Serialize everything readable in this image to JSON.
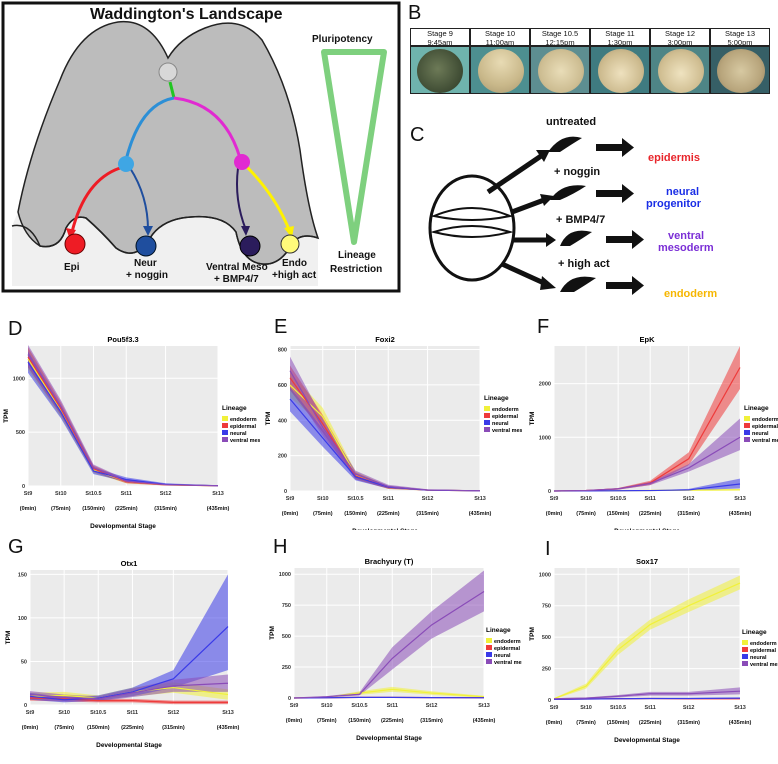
{
  "panels": {
    "A": "A",
    "B": "B",
    "C": "C",
    "D": "D",
    "E": "E",
    "F": "F",
    "G": "G",
    "H": "H",
    "I": "I"
  },
  "landscape": {
    "title": "Waddington's Landscape",
    "pluripotency": "Pluripotency",
    "lineage_restriction_1": "Lineage",
    "lineage_restriction_2": "Restriction",
    "fates": {
      "epi": "Epi",
      "neur_1": "Neur",
      "neur_2": "+ noggin",
      "ventral_1": "Ventral Meso",
      "ventral_2": "+ BMP4/7",
      "endo_1": "Endo",
      "endo_2": "+high act"
    },
    "colors": {
      "epi": "#ee1c25",
      "neur": "#1f4e9e",
      "ventral": "#2b1c5c",
      "endo": "#fff200",
      "node_blue": "#3fa6e4",
      "node_magenta": "#e12ad1",
      "node_top": "#d8d8d8",
      "arrow_green": "#22c522"
    }
  },
  "stages": [
    {
      "name": "Stage 9",
      "time": "9:45am"
    },
    {
      "name": "Stage 10",
      "time": "11:00am"
    },
    {
      "name": "Stage 10.5",
      "time": "12:15pm"
    },
    {
      "name": "Stage 11",
      "time": "1:30pm"
    },
    {
      "name": "Stage 12",
      "time": "3:00pm"
    },
    {
      "name": "Stage 13",
      "time": "5:00pm"
    }
  ],
  "treatments": [
    {
      "treatment": "untreated",
      "outcome_1": "epidermis",
      "outcome_2": "",
      "color": "#e8252b"
    },
    {
      "treatment": "+ noggin",
      "outcome_1": "neural",
      "outcome_2": "progenitor",
      "color": "#1a2ee6"
    },
    {
      "treatment": "+ BMP4/7",
      "outcome_1": "ventral",
      "outcome_2": "mesoderm",
      "color": "#7b2fd6"
    },
    {
      "treatment": "+ high act",
      "outcome_1": "endoderm",
      "outcome_2": "",
      "color": "#f6b600"
    }
  ],
  "lineage_colors": {
    "endoderm": "#f1f13a",
    "epidermal": "#ee3b3b",
    "neural": "#3a3ae8",
    "ventral meso": "#8a4cb8"
  },
  "chart_data": [
    {
      "panel": "D",
      "type": "line",
      "title": "Pou5f3.3",
      "categories": [
        "St9",
        "St10",
        "St10.5",
        "St11",
        "St12",
        "St13"
      ],
      "times": [
        "(0min)",
        "(75min)",
        "(150min)",
        "(225min)",
        "(315min)",
        "(435min)"
      ],
      "x": [
        0,
        75,
        150,
        225,
        315,
        435
      ],
      "xlabel": "Developmental Stage",
      "ylabel": "TPM",
      "yticks": [
        0,
        500,
        1000
      ],
      "ylim": [
        0,
        1300
      ],
      "legend_title": "Lineage",
      "legend": [
        "endoderm",
        "epidermal",
        "neural",
        "ventral meso"
      ],
      "series": [
        {
          "name": "endoderm",
          "values": [
            1180,
            700,
            150,
            40,
            10,
            2
          ],
          "lower": [
            1080,
            640,
            120,
            25,
            5,
            0
          ],
          "upper": [
            1280,
            760,
            180,
            55,
            18,
            5
          ]
        },
        {
          "name": "epidermal",
          "values": [
            1200,
            720,
            160,
            40,
            10,
            2
          ],
          "lower": [
            1100,
            660,
            130,
            25,
            5,
            0
          ],
          "upper": [
            1290,
            780,
            190,
            55,
            18,
            5
          ]
        },
        {
          "name": "neural",
          "values": [
            1150,
            690,
            140,
            60,
            15,
            3
          ],
          "lower": [
            1050,
            630,
            110,
            40,
            8,
            0
          ],
          "upper": [
            1250,
            750,
            170,
            80,
            25,
            6
          ]
        },
        {
          "name": "ventral meso",
          "values": [
            1220,
            740,
            170,
            45,
            12,
            2
          ],
          "lower": [
            1120,
            680,
            140,
            30,
            6,
            0
          ],
          "upper": [
            1310,
            800,
            200,
            60,
            20,
            5
          ]
        }
      ]
    },
    {
      "panel": "E",
      "type": "line",
      "title": "Foxi2",
      "categories": [
        "St9",
        "St10",
        "St10.5",
        "St11",
        "St12",
        "St13"
      ],
      "times": [
        "(0min)",
        "(75min)",
        "(150min)",
        "(225min)",
        "(315min)",
        "(435min)"
      ],
      "x": [
        0,
        75,
        150,
        225,
        315,
        435
      ],
      "xlabel": "Developmental Stage",
      "ylabel": "TPM",
      "yticks": [
        0,
        200,
        400,
        600,
        800
      ],
      "ylim": [
        0,
        820
      ],
      "legend_title": "Lineage",
      "legend": [
        "endoderm",
        "epidermal",
        "neural",
        "ventral meso"
      ],
      "series": [
        {
          "name": "endoderm",
          "values": [
            600,
            420,
            90,
            20,
            5,
            1
          ],
          "lower": [
            530,
            370,
            70,
            12,
            2,
            0
          ],
          "upper": [
            670,
            470,
            110,
            28,
            8,
            3
          ]
        },
        {
          "name": "epidermal",
          "values": [
            640,
            380,
            85,
            20,
            5,
            1
          ],
          "lower": [
            570,
            330,
            65,
            12,
            2,
            0
          ],
          "upper": [
            710,
            430,
            105,
            28,
            8,
            3
          ]
        },
        {
          "name": "neural",
          "values": [
            520,
            300,
            80,
            22,
            5,
            1
          ],
          "lower": [
            450,
            250,
            60,
            14,
            2,
            0
          ],
          "upper": [
            590,
            350,
            100,
            30,
            8,
            3
          ]
        },
        {
          "name": "ventral meso",
          "values": [
            680,
            360,
            95,
            25,
            6,
            1
          ],
          "lower": [
            600,
            310,
            75,
            15,
            2,
            0
          ],
          "upper": [
            760,
            410,
            115,
            35,
            10,
            3
          ]
        }
      ]
    },
    {
      "panel": "F",
      "type": "line",
      "title": "EpK",
      "categories": [
        "St9",
        "St10",
        "St10.5",
        "St11",
        "St12",
        "St13"
      ],
      "times": [
        "(0min)",
        "(75min)",
        "(150min)",
        "(225min)",
        "(315min)",
        "(435min)"
      ],
      "x": [
        0,
        75,
        150,
        225,
        315,
        435
      ],
      "xlabel": "Developmental Stage",
      "ylabel": "TPM",
      "yticks": [
        0,
        1000,
        2000
      ],
      "ylim": [
        0,
        2700
      ],
      "legend_title": "Lineage",
      "legend": [
        "endoderm",
        "epidermal",
        "neural",
        "ventral meso"
      ],
      "series": [
        {
          "name": "endoderm",
          "values": [
            0,
            2,
            5,
            10,
            15,
            20
          ],
          "lower": [
            0,
            0,
            0,
            0,
            5,
            10
          ],
          "upper": [
            0,
            5,
            10,
            20,
            30,
            40
          ]
        },
        {
          "name": "epidermal",
          "values": [
            0,
            10,
            40,
            150,
            600,
            2300
          ],
          "lower": [
            0,
            5,
            25,
            110,
            480,
            1900
          ],
          "upper": [
            0,
            15,
            55,
            190,
            720,
            2700
          ]
        },
        {
          "name": "neural",
          "values": [
            0,
            2,
            5,
            8,
            20,
            130
          ],
          "lower": [
            0,
            0,
            0,
            3,
            10,
            50
          ],
          "upper": [
            0,
            5,
            10,
            15,
            40,
            230
          ]
        },
        {
          "name": "ventral meso",
          "values": [
            0,
            10,
            40,
            140,
            430,
            1000
          ],
          "lower": [
            0,
            5,
            25,
            110,
            360,
            760
          ],
          "upper": [
            0,
            15,
            55,
            170,
            500,
            1350
          ]
        }
      ]
    },
    {
      "panel": "G",
      "type": "line",
      "title": "Otx1",
      "categories": [
        "St9",
        "St10",
        "St10.5",
        "St11",
        "St12",
        "St13"
      ],
      "times": [
        "(0min)",
        "(75min)",
        "(150min)",
        "(225min)",
        "(315min)",
        "(435min)"
      ],
      "x": [
        0,
        75,
        150,
        225,
        315,
        435
      ],
      "xlabel": "Developmental Stage",
      "ylabel": "TPM",
      "yticks": [
        0,
        50,
        100,
        150
      ],
      "ylim": [
        0,
        155
      ],
      "legend_title": "",
      "legend": [],
      "series": [
        {
          "name": "endoderm",
          "values": [
            10,
            11,
            8,
            15,
            20,
            12
          ],
          "lower": [
            6,
            7,
            5,
            10,
            14,
            6
          ],
          "upper": [
            14,
            15,
            11,
            20,
            26,
            18
          ]
        },
        {
          "name": "epidermal",
          "values": [
            8,
            7,
            5,
            5,
            3,
            3
          ],
          "lower": [
            5,
            4,
            3,
            3,
            1,
            1
          ],
          "upper": [
            11,
            10,
            7,
            7,
            5,
            5
          ]
        },
        {
          "name": "neural",
          "values": [
            10,
            6,
            8,
            15,
            30,
            90
          ],
          "lower": [
            6,
            3,
            5,
            10,
            20,
            40
          ],
          "upper": [
            14,
            9,
            11,
            20,
            40,
            150
          ]
        },
        {
          "name": "ventral meso",
          "values": [
            12,
            9,
            7,
            14,
            22,
            25
          ],
          "lower": [
            8,
            6,
            4,
            9,
            15,
            15
          ],
          "upper": [
            16,
            12,
            10,
            19,
            29,
            35
          ]
        }
      ]
    },
    {
      "panel": "H",
      "type": "line",
      "title": "Brachyury (T)",
      "categories": [
        "St9",
        "St10",
        "St10.5",
        "St11",
        "St12",
        "St13"
      ],
      "times": [
        "(0min)",
        "(75min)",
        "(150min)",
        "(225min)",
        "(315min)",
        "(435min)"
      ],
      "x": [
        0,
        75,
        150,
        225,
        315,
        435
      ],
      "xlabel": "Developmental Stage",
      "ylabel": "TPM",
      "yticks": [
        0,
        250,
        500,
        750,
        1000
      ],
      "ylim": [
        0,
        1050
      ],
      "legend_title": "Lineage",
      "legend": [
        "endoderm",
        "epidermal",
        "neural",
        "ventral meso"
      ],
      "series": [
        {
          "name": "endoderm",
          "values": [
            0,
            5,
            40,
            70,
            40,
            10
          ],
          "lower": [
            0,
            2,
            25,
            50,
            25,
            2
          ],
          "upper": [
            0,
            8,
            55,
            90,
            55,
            18
          ]
        },
        {
          "name": "epidermal",
          "values": [
            0,
            2,
            5,
            5,
            3,
            2
          ],
          "lower": [
            0,
            0,
            2,
            2,
            0,
            0
          ],
          "upper": [
            0,
            4,
            8,
            8,
            6,
            4
          ]
        },
        {
          "name": "neural",
          "values": [
            0,
            2,
            5,
            5,
            3,
            2
          ],
          "lower": [
            0,
            0,
            2,
            2,
            0,
            0
          ],
          "upper": [
            0,
            4,
            8,
            8,
            6,
            4
          ]
        },
        {
          "name": "ventral meso",
          "values": [
            0,
            10,
            30,
            320,
            590,
            860
          ],
          "lower": [
            0,
            5,
            20,
            230,
            480,
            700
          ],
          "upper": [
            0,
            15,
            45,
            410,
            700,
            1030
          ]
        }
      ]
    },
    {
      "panel": "I",
      "type": "line",
      "title": "Sox17",
      "categories": [
        "St9",
        "St10",
        "St10.5",
        "St11",
        "St12",
        "St13"
      ],
      "times": [
        "(0min)",
        "(75min)",
        "(150min)",
        "(225min)",
        "(315min)",
        "(435min)"
      ],
      "x": [
        0,
        75,
        150,
        225,
        315,
        435
      ],
      "xlabel": "Developmental Stage",
      "ylabel": "TPM",
      "yticks": [
        0,
        250,
        500,
        750,
        1000
      ],
      "ylim": [
        0,
        1050
      ],
      "legend_title": "Lineage",
      "legend": [
        "endoderm",
        "epidermal",
        "neural",
        "ventral meso"
      ],
      "series": [
        {
          "name": "endoderm",
          "values": [
            10,
            110,
            400,
            600,
            750,
            930
          ],
          "lower": [
            5,
            90,
            360,
            560,
            700,
            880
          ],
          "upper": [
            15,
            130,
            440,
            640,
            800,
            990
          ]
        },
        {
          "name": "epidermal",
          "values": [
            5,
            8,
            10,
            12,
            10,
            10
          ],
          "lower": [
            2,
            5,
            6,
            8,
            6,
            6
          ],
          "upper": [
            8,
            11,
            14,
            16,
            14,
            14
          ]
        },
        {
          "name": "neural",
          "values": [
            5,
            8,
            10,
            12,
            12,
            15
          ],
          "lower": [
            2,
            5,
            6,
            8,
            8,
            10
          ],
          "upper": [
            8,
            11,
            14,
            16,
            16,
            20
          ]
        },
        {
          "name": "ventral meso",
          "values": [
            10,
            15,
            30,
            50,
            50,
            70
          ],
          "lower": [
            5,
            10,
            20,
            35,
            35,
            45
          ],
          "upper": [
            15,
            20,
            40,
            65,
            65,
            100
          ]
        }
      ]
    }
  ]
}
